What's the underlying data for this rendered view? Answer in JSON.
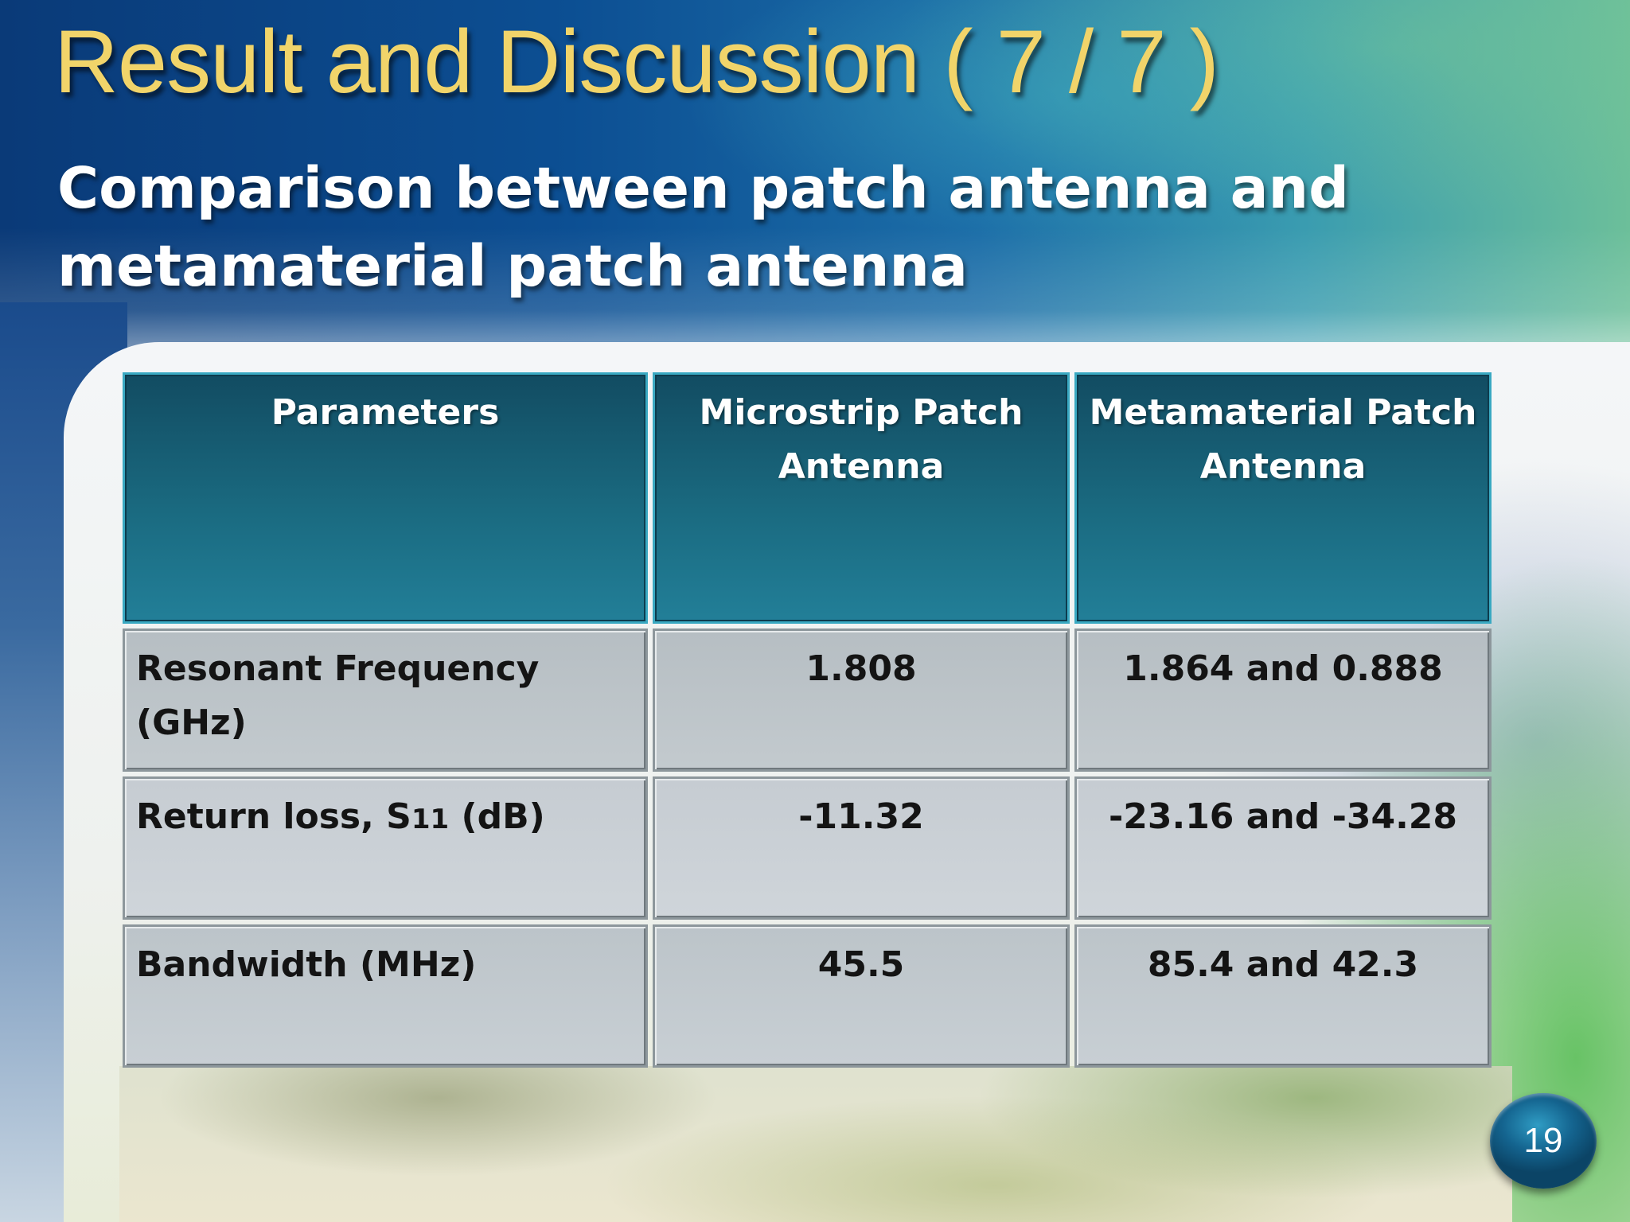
{
  "slide": {
    "title": "Result and Discussion ( 7 / 7 )",
    "subtitle": "Comparison between patch antenna and metamaterial patch antenna",
    "page_number": "19"
  },
  "table": {
    "headers": [
      "Parameters",
      "Microstrip Patch Antenna",
      "Metamaterial Patch Antenna"
    ],
    "rows": [
      {
        "parameter": "Resonant Frequency (GHz)",
        "microstrip": "1.808",
        "metamaterial": "1.864 and 0.888"
      },
      {
        "parameter_prefix": "Return loss, S",
        "parameter_subscript": "11",
        "parameter_suffix": " (dB)",
        "microstrip": "-11.32",
        "metamaterial": "-23.16 and  -34.28"
      },
      {
        "parameter": "Bandwidth (MHz)",
        "microstrip": "45.5",
        "metamaterial": "85.4 and  42.3"
      }
    ]
  }
}
